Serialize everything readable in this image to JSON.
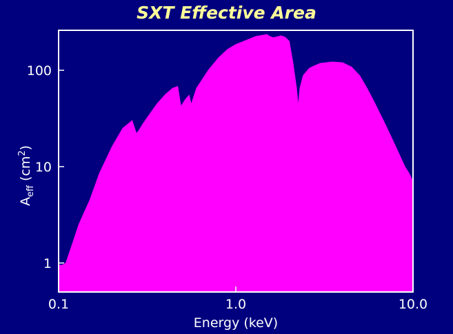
{
  "chart_data": {
    "type": "area",
    "title": "SXT Effective Area",
    "xlabel": "Energy (keV)",
    "ylabel": {
      "base": "A",
      "sub": "eff",
      "unit_open": " (cm",
      "sup": "2",
      "unit_close": ")"
    },
    "xscale": "log",
    "yscale": "log",
    "xlim": [
      0.1,
      10.0
    ],
    "ylim": [
      0.5,
      260
    ],
    "x_ticks": [
      "0.1",
      "1.0",
      "10.0"
    ],
    "x_tick_values": [
      0.1,
      1.0,
      10.0
    ],
    "y_ticks": [
      "1",
      "10",
      "100"
    ],
    "y_tick_values": [
      1,
      10,
      100
    ],
    "grid": false,
    "fill_color": "#ff00ff",
    "background_color": "#00007f",
    "frame_color": "#ffffff",
    "title_color": "#ffff99",
    "series": [
      {
        "x": [
          0.1,
          0.105,
          0.11,
          0.12,
          0.13,
          0.15,
          0.17,
          0.2,
          0.23,
          0.26,
          0.275,
          0.285,
          0.3,
          0.33,
          0.36,
          0.4,
          0.44,
          0.47,
          0.49,
          0.52,
          0.545,
          0.56,
          0.6,
          0.7,
          0.8,
          0.9,
          1.0,
          1.15,
          1.3,
          1.5,
          1.55,
          1.63,
          1.7,
          1.8,
          1.9,
          2.0,
          2.1,
          2.2,
          2.25,
          2.3,
          2.4,
          2.6,
          2.8,
          3.0,
          3.5,
          4.0,
          4.5,
          5.0,
          5.5,
          6.0,
          7.0,
          8.0,
          9.0,
          9.5,
          10.0
        ],
        "y": [
          0.95,
          0.95,
          1.0,
          1.6,
          2.5,
          4.5,
          8.5,
          16,
          25,
          30,
          22,
          24,
          28,
          36,
          45,
          56,
          65,
          68,
          42,
          50,
          55,
          44,
          65,
          100,
          135,
          165,
          185,
          205,
          225,
          235,
          225,
          218,
          222,
          228,
          220,
          200,
          120,
          65,
          42,
          65,
          88,
          105,
          112,
          118,
          122,
          120,
          108,
          88,
          65,
          48,
          27,
          16,
          10,
          8.5,
          7
        ]
      }
    ]
  }
}
